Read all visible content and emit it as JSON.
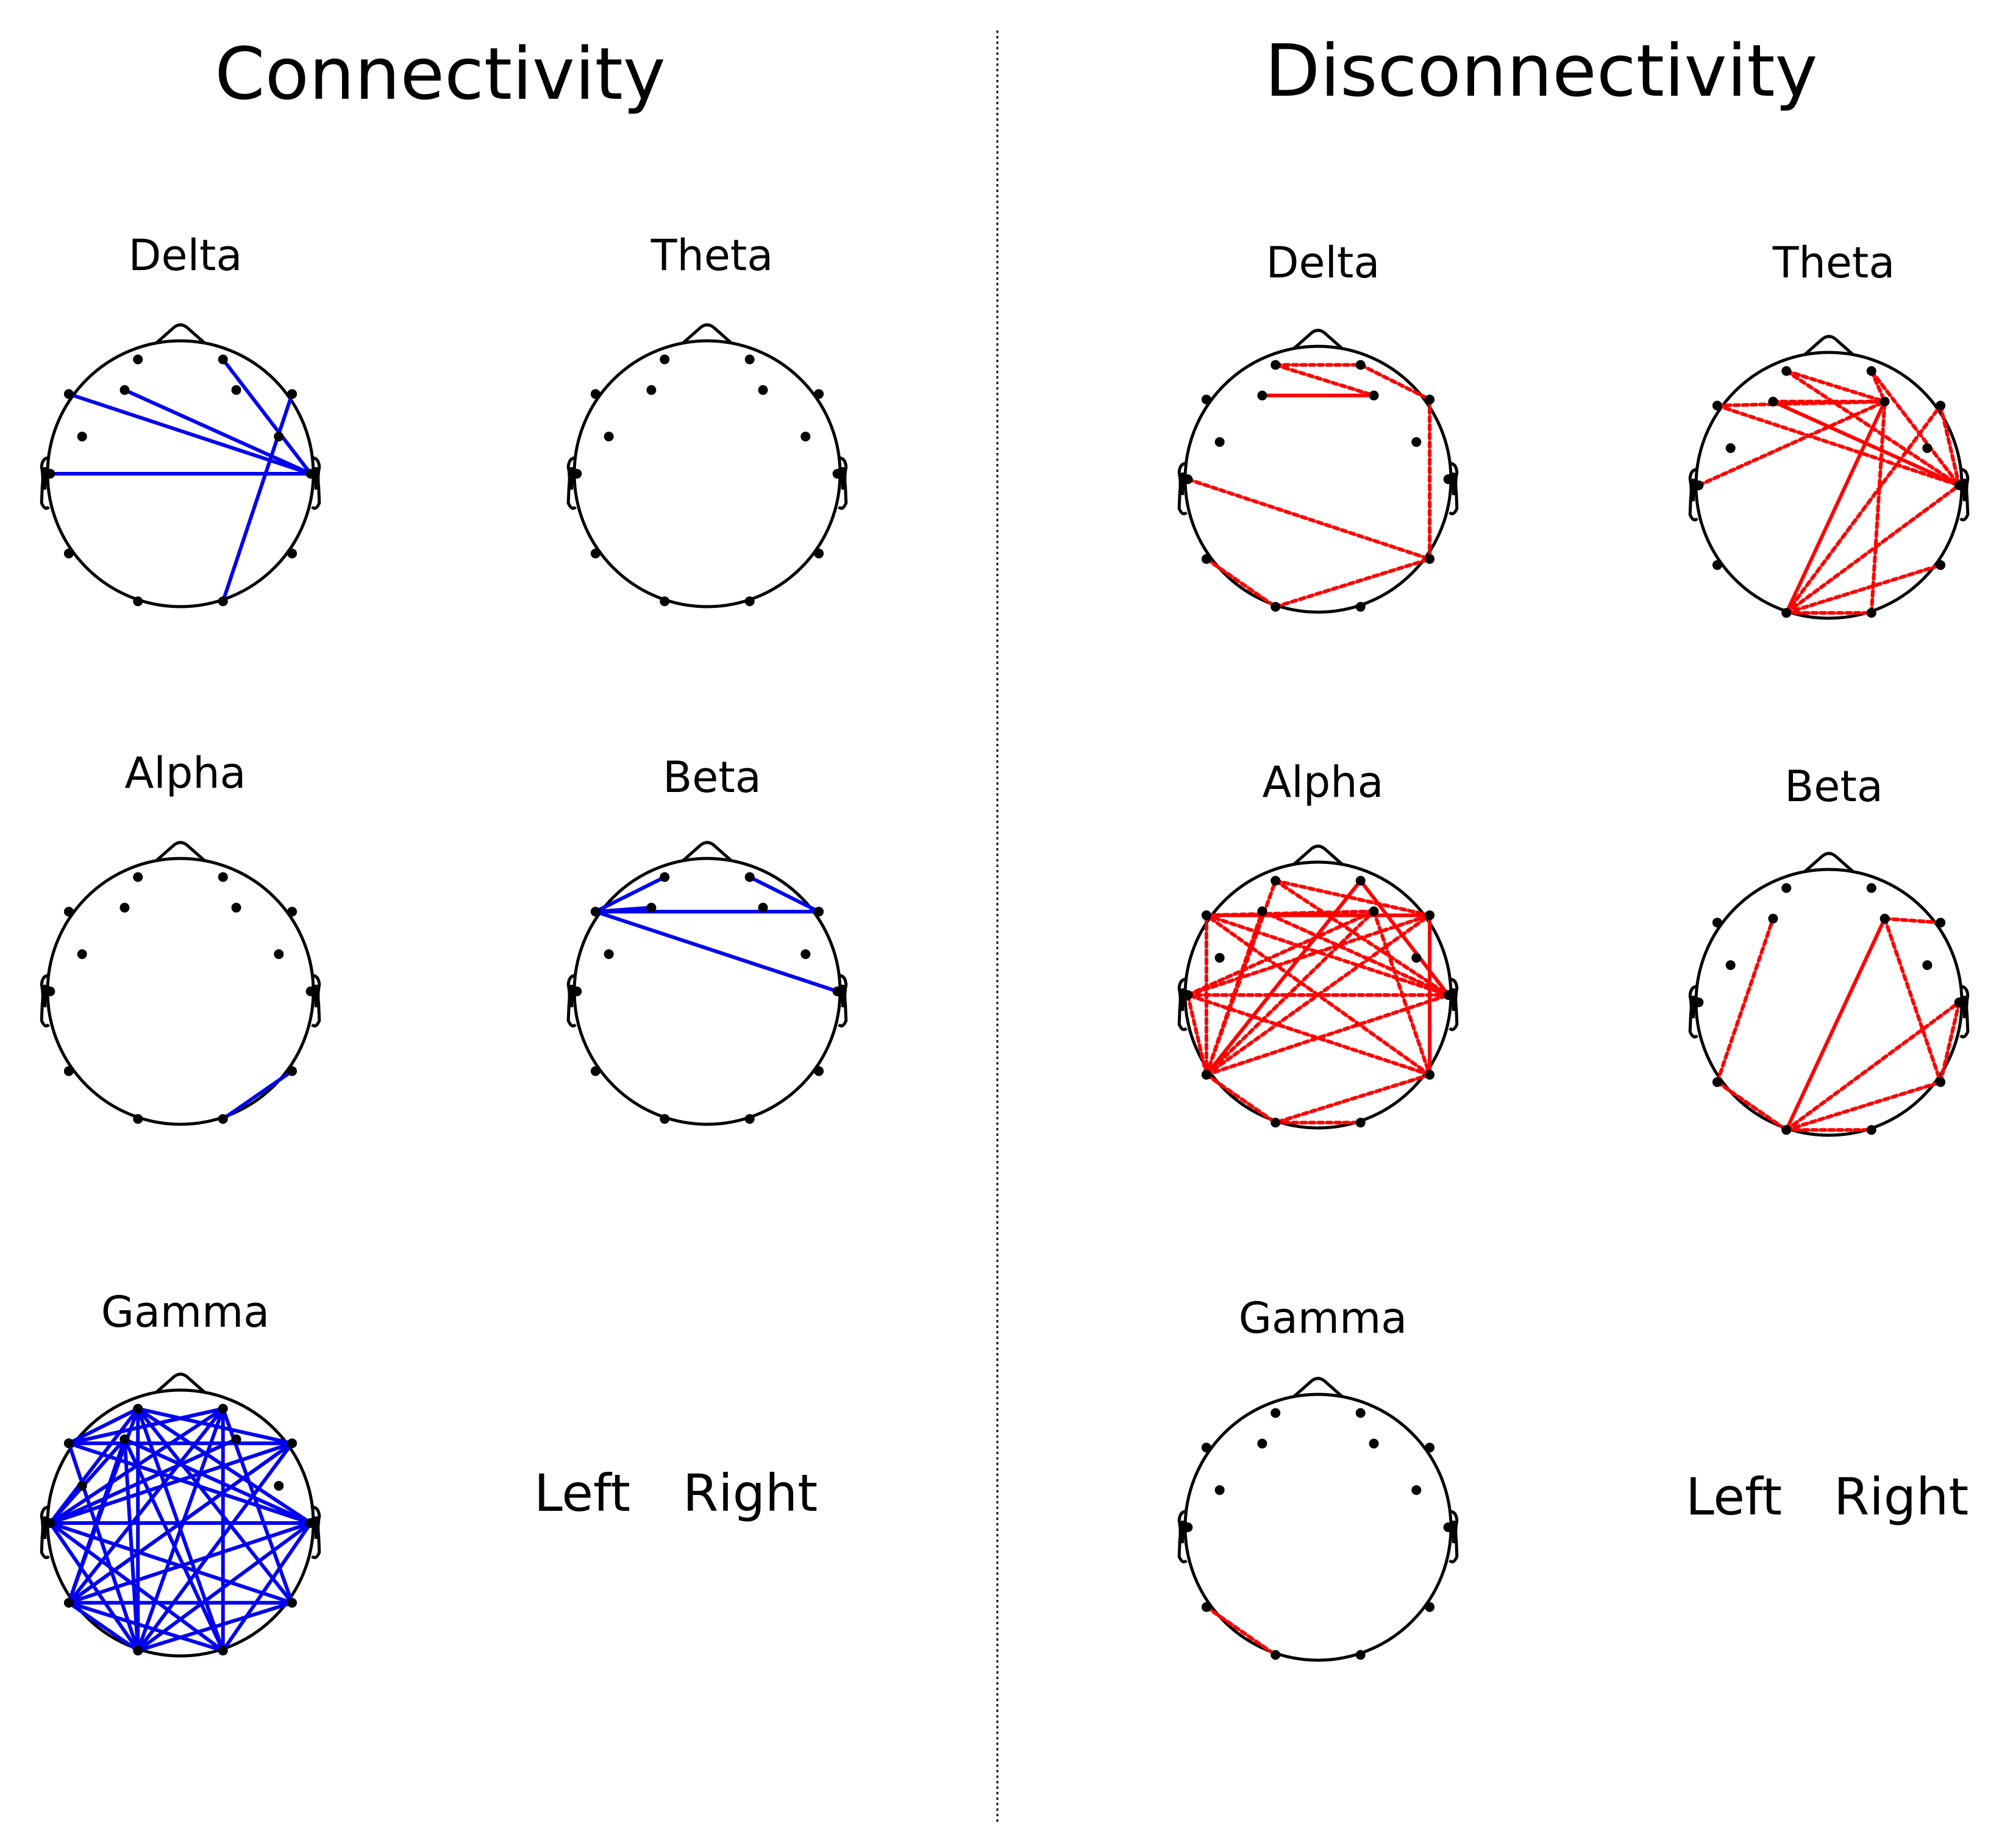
{
  "sections": [
    {
      "title": "Connectivity",
      "edge_color": "#0000ee",
      "line_style": "solid"
    },
    {
      "title": "Disconnectivity",
      "edge_color": "#ff0000",
      "line_style": "dotted"
    }
  ],
  "legend": {
    "left": "Left",
    "right": "Right"
  },
  "electrodes": [
    "Fp1",
    "Fp2",
    "F7",
    "F3",
    "F4",
    "F8",
    "T3",
    "T4",
    "T5",
    "T6",
    "O1",
    "O2"
  ],
  "panels": [
    {
      "section": 0,
      "band": "Delta",
      "edges": [
        [
          "F7",
          "T4"
        ],
        [
          "F3",
          "T4"
        ],
        [
          "T3",
          "T4"
        ],
        [
          "Fp2",
          "T4"
        ],
        [
          "F8",
          "O2"
        ]
      ]
    },
    {
      "section": 0,
      "band": "Theta",
      "edges": []
    },
    {
      "section": 0,
      "band": "Alpha",
      "edges": [
        [
          "T6",
          "O2"
        ]
      ]
    },
    {
      "section": 0,
      "band": "Beta",
      "edges": [
        [
          "F7",
          "Fp1"
        ],
        [
          "F7",
          "F8"
        ],
        [
          "F7",
          "F3"
        ],
        [
          "Fp2",
          "F8"
        ],
        [
          "F7",
          "T4"
        ]
      ]
    },
    {
      "section": 0,
      "band": "Gamma",
      "edges": [
        [
          "T3",
          "Fp1"
        ],
        [
          "T3",
          "Fp2"
        ],
        [
          "T3",
          "F8"
        ],
        [
          "T3",
          "F3"
        ],
        [
          "T3",
          "F4"
        ],
        [
          "T3",
          "T4"
        ],
        [
          "T3",
          "T6"
        ],
        [
          "T3",
          "O1"
        ],
        [
          "T3",
          "O2"
        ],
        [
          "F7",
          "Fp1"
        ],
        [
          "F7",
          "Fp2"
        ],
        [
          "F7",
          "F8"
        ],
        [
          "F7",
          "T4"
        ],
        [
          "F7",
          "O1"
        ],
        [
          "T5",
          "Fp1"
        ],
        [
          "T5",
          "Fp2"
        ],
        [
          "T5",
          "F8"
        ],
        [
          "T5",
          "F3"
        ],
        [
          "T5",
          "T4"
        ],
        [
          "T5",
          "O1"
        ],
        [
          "T5",
          "O2"
        ],
        [
          "T5",
          "T6"
        ],
        [
          "Fp1",
          "O1"
        ],
        [
          "Fp1",
          "O2"
        ],
        [
          "Fp1",
          "T6"
        ],
        [
          "Fp1",
          "T4"
        ],
        [
          "Fp1",
          "F8"
        ],
        [
          "Fp2",
          "O1"
        ],
        [
          "Fp2",
          "O2"
        ],
        [
          "Fp2",
          "T6"
        ],
        [
          "Fp2",
          "F7"
        ],
        [
          "F3",
          "O1"
        ],
        [
          "F3",
          "O2"
        ],
        [
          "F3",
          "T4"
        ],
        [
          "F8",
          "O1"
        ],
        [
          "F8",
          "T5"
        ],
        [
          "O1",
          "T4"
        ],
        [
          "O2",
          "T4"
        ],
        [
          "O1",
          "T6"
        ]
      ]
    },
    {
      "section": 1,
      "band": "Delta",
      "edges": [
        [
          "Fp1",
          "Fp2"
        ],
        [
          "Fp1",
          "F4"
        ],
        [
          "Fp2",
          "F8"
        ],
        [
          "F3",
          "F4"
        ],
        [
          "F8",
          "T6"
        ],
        [
          "T3",
          "T6"
        ],
        [
          "O1",
          "T6"
        ],
        [
          "T5",
          "O1"
        ]
      ]
    },
    {
      "section": 1,
      "band": "Theta",
      "edges": [
        [
          "Fp1",
          "F4"
        ],
        [
          "Fp1",
          "T4"
        ],
        [
          "F3",
          "F4"
        ],
        [
          "F3",
          "T4"
        ],
        [
          "F7",
          "F4"
        ],
        [
          "F7",
          "T4"
        ],
        [
          "T3",
          "F4"
        ],
        [
          "Fp2",
          "F4"
        ],
        [
          "Fp2",
          "T4"
        ],
        [
          "F8",
          "T4"
        ],
        [
          "O1",
          "F4"
        ],
        [
          "O1",
          "T4"
        ],
        [
          "O1",
          "F8"
        ],
        [
          "O1",
          "T6"
        ],
        [
          "O2",
          "F4"
        ],
        [
          "O1",
          "O2"
        ]
      ]
    },
    {
      "section": 1,
      "band": "Alpha",
      "edges": [
        [
          "T5",
          "F7"
        ],
        [
          "T5",
          "F3"
        ],
        [
          "T5",
          "Fp1"
        ],
        [
          "T5",
          "Fp2"
        ],
        [
          "T5",
          "F4"
        ],
        [
          "T5",
          "F8"
        ],
        [
          "T5",
          "T4"
        ],
        [
          "T5",
          "T3"
        ],
        [
          "T5",
          "O1"
        ],
        [
          "F7",
          "T4"
        ],
        [
          "F7",
          "F8"
        ],
        [
          "F7",
          "F4"
        ],
        [
          "T3",
          "T4"
        ],
        [
          "T3",
          "F8"
        ],
        [
          "T3",
          "F4"
        ],
        [
          "Fp1",
          "T4"
        ],
        [
          "Fp1",
          "F8"
        ],
        [
          "Fp2",
          "T4"
        ],
        [
          "Fp2",
          "T5"
        ],
        [
          "F3",
          "T4"
        ],
        [
          "T6",
          "F7"
        ],
        [
          "T6",
          "T3"
        ],
        [
          "T6",
          "O1"
        ],
        [
          "O1",
          "O2"
        ],
        [
          "F8",
          "T6"
        ],
        [
          "F4",
          "T6"
        ]
      ]
    },
    {
      "section": 1,
      "band": "Beta",
      "edges": [
        [
          "T5",
          "F3"
        ],
        [
          "F4",
          "T6"
        ],
        [
          "F4",
          "F8"
        ],
        [
          "O1",
          "F4"
        ],
        [
          "O1",
          "T4"
        ],
        [
          "O1",
          "T6"
        ],
        [
          "O1",
          "O2"
        ],
        [
          "T5",
          "O1"
        ],
        [
          "T6",
          "T4"
        ]
      ]
    },
    {
      "section": 1,
      "band": "Gamma",
      "edges": [
        [
          "T5",
          "O1"
        ]
      ]
    }
  ]
}
